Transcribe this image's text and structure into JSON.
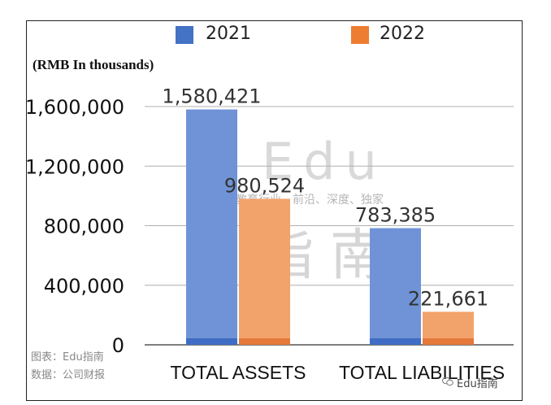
{
  "legend": [
    {
      "label": "2021",
      "color": "#4472C4"
    },
    {
      "label": "2022",
      "color": "#ED7D31"
    }
  ],
  "unit_label": "(RMB In thousands)",
  "source_lines": [
    "图表：Edu指南",
    "数据：公司财报"
  ],
  "watermark": {
    "main": "Edu",
    "tagline": "教育行业、前沿、深度、独家",
    "cn": "指南"
  },
  "wechat_label": "Edu指南",
  "colors": {
    "series_2021": "#6F93D6",
    "series_2022": "#F2A36B",
    "base_2021": "#3F6CC4",
    "base_2022": "#E5793A"
  },
  "chart_data": {
    "type": "bar",
    "categories": [
      "TOTAL ASSETS",
      "TOTAL LIABILITIES"
    ],
    "series": [
      {
        "name": "2021",
        "values": [
          1580421,
          783385
        ],
        "labels": [
          "1,580,421",
          "783,385"
        ]
      },
      {
        "name": "2022",
        "values": [
          980524,
          221661
        ],
        "labels": [
          "980,524",
          "221,661"
        ]
      }
    ],
    "ylim": [
      0,
      1600000
    ],
    "yticks": [
      0,
      400000,
      800000,
      1200000,
      1600000
    ],
    "ytick_labels": [
      "0",
      "400,000",
      "800,000",
      "1,200,000",
      "1,600,000"
    ],
    "grid": true,
    "legend_position": "top"
  }
}
